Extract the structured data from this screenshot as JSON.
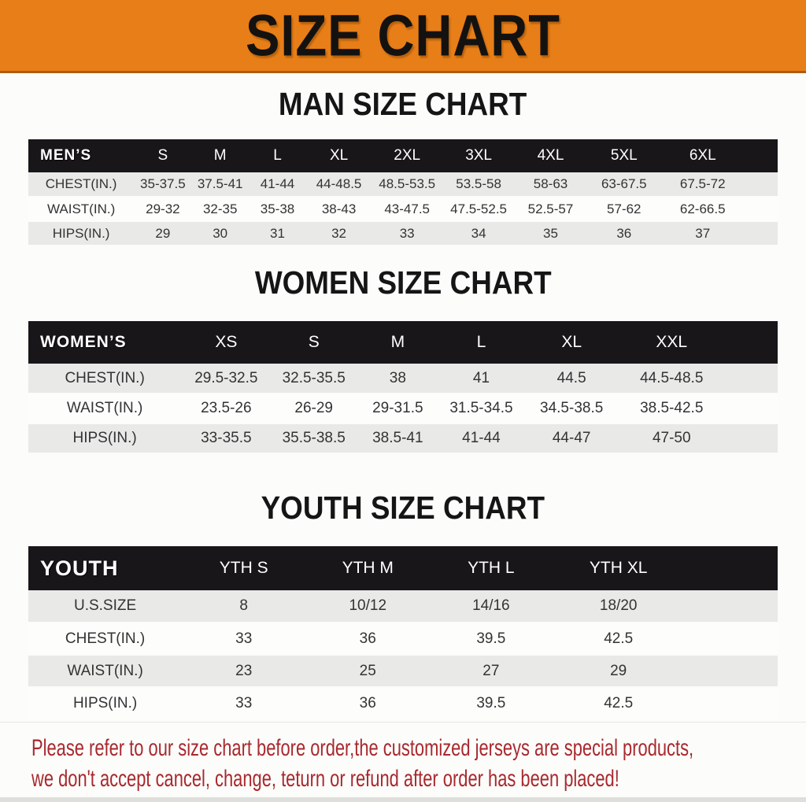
{
  "banner": {
    "title": "SIZE CHART",
    "background_color": "#e87e17",
    "title_color": "#141210"
  },
  "sections": [
    {
      "heading": "MAN SIZE CHART",
      "table": {
        "header": [
          "MEN’S",
          "S",
          "M",
          "L",
          "XL",
          "2XL",
          "3XL",
          "4XL",
          "5XL",
          "6XL"
        ],
        "rows": [
          {
            "label": "CHEST(IN.)",
            "values": [
              "35-37.5",
              "37.5-41",
              "41-44",
              "44-48.5",
              "48.5-53.5",
              "53.5-58",
              "58-63",
              "63-67.5",
              "67.5-72"
            ]
          },
          {
            "label": "WAIST(IN.)",
            "values": [
              "29-32",
              "32-35",
              "35-38",
              "38-43",
              "43-47.5",
              "47.5-52.5",
              "52.5-57",
              "57-62",
              "62-66.5"
            ]
          },
          {
            "label": "HIPS(IN.)",
            "values": [
              "29",
              "30",
              "31",
              "32",
              "33",
              "34",
              "35",
              "36",
              "37"
            ]
          }
        ]
      }
    },
    {
      "heading": "WOMEN SIZE CHART",
      "table": {
        "header": [
          "WOMEN’S",
          "XS",
          "S",
          "M",
          "L",
          "XL",
          "XXL"
        ],
        "rows": [
          {
            "label": "CHEST(IN.)",
            "values": [
              "29.5-32.5",
              "32.5-35.5",
              "38",
              "41",
              "44.5",
              "44.5-48.5"
            ]
          },
          {
            "label": "WAIST(IN.)",
            "values": [
              "23.5-26",
              "26-29",
              "29-31.5",
              "31.5-34.5",
              "34.5-38.5",
              "38.5-42.5"
            ]
          },
          {
            "label": "HIPS(IN.)",
            "values": [
              "33-35.5",
              "35.5-38.5",
              "38.5-41",
              "41-44",
              "44-47",
              "47-50"
            ]
          }
        ]
      }
    },
    {
      "heading": "YOUTH SIZE CHART",
      "table": {
        "header": [
          "YOUTH",
          "YTH S",
          "YTH M",
          "YTH L",
          "YTH XL"
        ],
        "rows": [
          {
            "label": "U.S.SIZE",
            "values": [
              "8",
              "10/12",
              "14/16",
              "18/20"
            ]
          },
          {
            "label": "CHEST(IN.)",
            "values": [
              "33",
              "36",
              "39.5",
              "42.5"
            ]
          },
          {
            "label": "WAIST(IN.)",
            "values": [
              "23",
              "25",
              "27",
              "29"
            ]
          },
          {
            "label": "HIPS(IN.)",
            "values": [
              "33",
              "36",
              "39.5",
              "42.5"
            ]
          }
        ]
      }
    }
  ],
  "footer": {
    "line1": "Please refer to our size chart before order,the customized jerseys are special products,",
    "line2": "we don't accept cancel, change, teturn or refund after order has been placed!",
    "text_color": "#a8292d"
  },
  "colors": {
    "table_header_bar": "#19161a",
    "row_stripe": "#e9e9e8",
    "row_white": "#fdfdfc",
    "page_background": "#fcfcfb"
  }
}
